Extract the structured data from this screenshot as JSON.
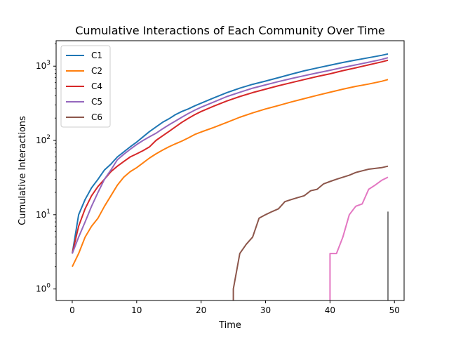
{
  "chart_data": {
    "type": "line",
    "title": "Cumulative Interactions of Each Community Over Time",
    "xlabel": "Time",
    "ylabel": "Cumulative Interactions",
    "yscale": "log",
    "xlim": [
      -2.5,
      51.5
    ],
    "ylim": [
      0.7,
      2200
    ],
    "xticks": [
      0,
      10,
      20,
      30,
      40,
      50
    ],
    "yticks": [
      {
        "value": 1,
        "base": "10",
        "exp": "0"
      },
      {
        "value": 10,
        "base": "10",
        "exp": "1"
      },
      {
        "value": 100,
        "base": "10",
        "exp": "2"
      },
      {
        "value": 1000,
        "base": "10",
        "exp": "3"
      }
    ],
    "grid": false,
    "legend_position": "upper-left",
    "series": [
      {
        "name": "C1",
        "color": "#1f77b4",
        "in_legend": true,
        "points": [
          [
            0,
            3
          ],
          [
            1,
            10
          ],
          [
            2,
            16
          ],
          [
            3,
            23
          ],
          [
            4,
            30
          ],
          [
            5,
            40
          ],
          [
            6,
            48
          ],
          [
            7,
            60
          ],
          [
            8,
            70
          ],
          [
            9,
            82
          ],
          [
            10,
            95
          ],
          [
            11,
            112
          ],
          [
            12,
            132
          ],
          [
            13,
            152
          ],
          [
            14,
            175
          ],
          [
            15,
            195
          ],
          [
            16,
            222
          ],
          [
            17,
            245
          ],
          [
            18,
            265
          ],
          [
            19,
            292
          ],
          [
            20,
            318
          ],
          [
            22,
            375
          ],
          [
            24,
            440
          ],
          [
            26,
            505
          ],
          [
            28,
            570
          ],
          [
            30,
            630
          ],
          [
            32,
            700
          ],
          [
            34,
            780
          ],
          [
            36,
            865
          ],
          [
            38,
            945
          ],
          [
            40,
            1030
          ],
          [
            42,
            1120
          ],
          [
            44,
            1210
          ],
          [
            46,
            1300
          ],
          [
            48,
            1400
          ],
          [
            49,
            1460
          ]
        ]
      },
      {
        "name": "C2",
        "color": "#ff7f0e",
        "in_legend": true,
        "points": [
          [
            0,
            2
          ],
          [
            1,
            3
          ],
          [
            2,
            5
          ],
          [
            3,
            7
          ],
          [
            4,
            9
          ],
          [
            5,
            13
          ],
          [
            6,
            18
          ],
          [
            7,
            25
          ],
          [
            8,
            32
          ],
          [
            9,
            38
          ],
          [
            10,
            43
          ],
          [
            11,
            50
          ],
          [
            12,
            58
          ],
          [
            13,
            66
          ],
          [
            14,
            74
          ],
          [
            15,
            82
          ],
          [
            16,
            90
          ],
          [
            17,
            98
          ],
          [
            18,
            108
          ],
          [
            19,
            120
          ],
          [
            20,
            130
          ],
          [
            22,
            150
          ],
          [
            24,
            175
          ],
          [
            26,
            205
          ],
          [
            28,
            235
          ],
          [
            30,
            265
          ],
          [
            32,
            295
          ],
          [
            34,
            330
          ],
          [
            36,
            365
          ],
          [
            38,
            405
          ],
          [
            40,
            445
          ],
          [
            42,
            490
          ],
          [
            44,
            535
          ],
          [
            46,
            575
          ],
          [
            48,
            625
          ],
          [
            49,
            660
          ]
        ]
      },
      {
        "name": "",
        "color": "#2ca02c",
        "in_legend": false,
        "points": []
      },
      {
        "name": "C4",
        "color": "#d62728",
        "in_legend": true,
        "points": [
          [
            0,
            3
          ],
          [
            1,
            7
          ],
          [
            2,
            12
          ],
          [
            3,
            18
          ],
          [
            4,
            24
          ],
          [
            5,
            30
          ],
          [
            6,
            38
          ],
          [
            7,
            45
          ],
          [
            8,
            52
          ],
          [
            9,
            60
          ],
          [
            10,
            66
          ],
          [
            11,
            73
          ],
          [
            12,
            82
          ],
          [
            13,
            100
          ],
          [
            14,
            115
          ],
          [
            15,
            132
          ],
          [
            16,
            152
          ],
          [
            17,
            175
          ],
          [
            18,
            198
          ],
          [
            19,
            222
          ],
          [
            20,
            245
          ],
          [
            22,
            290
          ],
          [
            24,
            340
          ],
          [
            26,
            390
          ],
          [
            28,
            440
          ],
          [
            30,
            490
          ],
          [
            32,
            545
          ],
          [
            34,
            600
          ],
          [
            36,
            660
          ],
          [
            38,
            725
          ],
          [
            40,
            790
          ],
          [
            42,
            870
          ],
          [
            44,
            950
          ],
          [
            46,
            1040
          ],
          [
            48,
            1140
          ],
          [
            49,
            1200
          ]
        ]
      },
      {
        "name": "C5",
        "color": "#9467bd",
        "in_legend": true,
        "points": [
          [
            0,
            3
          ],
          [
            1,
            5
          ],
          [
            2,
            8
          ],
          [
            3,
            13
          ],
          [
            4,
            20
          ],
          [
            5,
            30
          ],
          [
            6,
            40
          ],
          [
            7,
            55
          ],
          [
            8,
            65
          ],
          [
            9,
            76
          ],
          [
            10,
            88
          ],
          [
            11,
            100
          ],
          [
            12,
            112
          ],
          [
            13,
            125
          ],
          [
            14,
            143
          ],
          [
            15,
            162
          ],
          [
            16,
            182
          ],
          [
            17,
            205
          ],
          [
            18,
            230
          ],
          [
            19,
            255
          ],
          [
            20,
            280
          ],
          [
            22,
            330
          ],
          [
            24,
            390
          ],
          [
            26,
            445
          ],
          [
            28,
            505
          ],
          [
            30,
            560
          ],
          [
            32,
            620
          ],
          [
            34,
            680
          ],
          [
            36,
            745
          ],
          [
            38,
            810
          ],
          [
            40,
            880
          ],
          [
            42,
            960
          ],
          [
            44,
            1040
          ],
          [
            46,
            1130
          ],
          [
            48,
            1230
          ],
          [
            49,
            1300
          ]
        ]
      },
      {
        "name": "C6",
        "color": "#8c564b",
        "in_legend": true,
        "points": [
          [
            25,
            0.6
          ],
          [
            25,
            1
          ],
          [
            26,
            3
          ],
          [
            27,
            4
          ],
          [
            28,
            5
          ],
          [
            29,
            9
          ],
          [
            30,
            10
          ],
          [
            31,
            11
          ],
          [
            32,
            12
          ],
          [
            33,
            15
          ],
          [
            34,
            16
          ],
          [
            35,
            17
          ],
          [
            36,
            18
          ],
          [
            37,
            21
          ],
          [
            38,
            22
          ],
          [
            39,
            26
          ],
          [
            40,
            28
          ],
          [
            41,
            30
          ],
          [
            42,
            32
          ],
          [
            43,
            34
          ],
          [
            44,
            37
          ],
          [
            45,
            39
          ],
          [
            46,
            41
          ],
          [
            47,
            42
          ],
          [
            48,
            43
          ],
          [
            49,
            45
          ]
        ]
      },
      {
        "name": "",
        "color": "#e377c2",
        "in_legend": false,
        "points": [
          [
            40,
            0.6
          ],
          [
            40,
            3
          ],
          [
            41,
            3
          ],
          [
            42,
            5
          ],
          [
            43,
            10
          ],
          [
            44,
            13
          ],
          [
            45,
            14
          ],
          [
            46,
            22
          ],
          [
            47,
            25
          ],
          [
            48,
            29
          ],
          [
            49,
            32
          ]
        ]
      },
      {
        "name": "",
        "color": "#7f7f7f",
        "in_legend": false,
        "points": [
          [
            49,
            0.6
          ],
          [
            49,
            11
          ]
        ]
      }
    ]
  }
}
